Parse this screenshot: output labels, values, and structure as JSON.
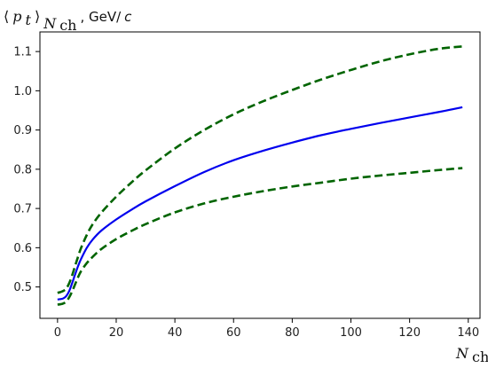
{
  "chart_data": {
    "type": "line",
    "ylabel": {
      "bracket_open": "⟨",
      "var": "p",
      "var_sub": "t",
      "bracket_close": "⟩",
      "outer_sub_main": "N",
      "outer_sub_sub": "ch",
      "unit": ", GeV/",
      "unit_italic": "c"
    },
    "xlabel": {
      "main": "N",
      "sub": "ch"
    },
    "xlim": [
      -6,
      144
    ],
    "ylim": [
      0.42,
      1.15
    ],
    "xticks": [
      0,
      20,
      40,
      60,
      80,
      100,
      120,
      140
    ],
    "yticks": [
      0.5,
      0.6,
      0.7,
      0.8,
      0.9,
      1.0,
      1.1
    ],
    "ytick_labels": [
      "0.5",
      "0.6",
      "0.7",
      "0.8",
      "0.9",
      "1.0",
      "1.1"
    ],
    "grid": false,
    "series": [
      {
        "style": "solid",
        "color": "#0000ee",
        "x": [
          0,
          1,
          2,
          3,
          4,
          5,
          6,
          7,
          8,
          10,
          12,
          15,
          20,
          25,
          30,
          40,
          50,
          60,
          70,
          80,
          90,
          100,
          110,
          120,
          130,
          138
        ],
        "y": [
          0.468,
          0.469,
          0.471,
          0.477,
          0.49,
          0.51,
          0.532,
          0.553,
          0.571,
          0.6,
          0.621,
          0.644,
          0.672,
          0.696,
          0.718,
          0.757,
          0.793,
          0.823,
          0.847,
          0.868,
          0.887,
          0.903,
          0.918,
          0.932,
          0.946,
          0.958
        ]
      },
      {
        "style": "dashed",
        "color": "#006400",
        "x": [
          0,
          1,
          2,
          3,
          4,
          5,
          6,
          7,
          8,
          10,
          12,
          15,
          20,
          25,
          30,
          40,
          50,
          60,
          70,
          80,
          90,
          100,
          110,
          120,
          130,
          138
        ],
        "y": [
          0.485,
          0.487,
          0.49,
          0.496,
          0.51,
          0.53,
          0.554,
          0.577,
          0.599,
          0.633,
          0.66,
          0.69,
          0.73,
          0.765,
          0.797,
          0.853,
          0.9,
          0.94,
          0.973,
          1.002,
          1.029,
          1.053,
          1.075,
          1.093,
          1.107,
          1.113
        ]
      },
      {
        "style": "dashed",
        "color": "#006400",
        "x": [
          0,
          1,
          2,
          3,
          4,
          5,
          6,
          7,
          8,
          10,
          12,
          15,
          20,
          25,
          30,
          40,
          50,
          60,
          70,
          80,
          90,
          100,
          110,
          120,
          130,
          138
        ],
        "y": [
          0.455,
          0.456,
          0.458,
          0.463,
          0.474,
          0.489,
          0.507,
          0.525,
          0.54,
          0.561,
          0.577,
          0.597,
          0.622,
          0.642,
          0.66,
          0.69,
          0.713,
          0.73,
          0.744,
          0.756,
          0.766,
          0.776,
          0.784,
          0.791,
          0.798,
          0.803
        ]
      }
    ]
  }
}
